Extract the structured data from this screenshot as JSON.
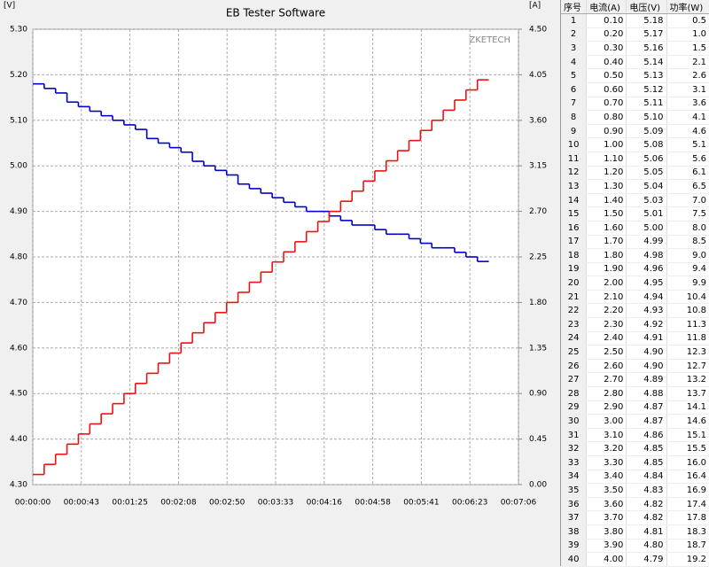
{
  "chart_data": {
    "type": "step-line",
    "title": "EB Tester Software",
    "y_label": "[V]",
    "y2_label": "[A]",
    "watermark": "ZKETECH",
    "x": [
      0,
      10,
      20,
      30,
      40,
      50,
      60,
      70,
      80,
      90,
      100,
      110,
      120,
      130,
      140,
      150,
      160,
      170,
      180,
      190,
      200,
      210,
      220,
      230,
      240,
      250,
      260,
      270,
      280,
      290,
      300,
      310,
      320,
      330,
      340,
      350,
      360,
      370,
      380,
      390
    ],
    "xlim": [
      0,
      426
    ],
    "xticks": [
      {
        "value": 0,
        "label": "00:00:00"
      },
      {
        "value": 42.6,
        "label": "00:00:43"
      },
      {
        "value": 85.2,
        "label": "00:01:25"
      },
      {
        "value": 127.8,
        "label": "00:02:08"
      },
      {
        "value": 170.4,
        "label": "00:02:50"
      },
      {
        "value": 213,
        "label": "00:03:33"
      },
      {
        "value": 255.6,
        "label": "00:04:16"
      },
      {
        "value": 298.2,
        "label": "00:04:58"
      },
      {
        "value": 340.8,
        "label": "00:05:41"
      },
      {
        "value": 383.4,
        "label": "00:06:23"
      },
      {
        "value": 426,
        "label": "00:07:06"
      }
    ],
    "ylim": [
      4.3,
      5.3
    ],
    "yticks": [
      {
        "value": 4.3,
        "label": "4.30"
      },
      {
        "value": 4.4,
        "label": "4.40"
      },
      {
        "value": 4.5,
        "label": "4.50"
      },
      {
        "value": 4.6,
        "label": "4.60"
      },
      {
        "value": 4.7,
        "label": "4.70"
      },
      {
        "value": 4.8,
        "label": "4.80"
      },
      {
        "value": 4.9,
        "label": "4.90"
      },
      {
        "value": 5.0,
        "label": "5.00"
      },
      {
        "value": 5.1,
        "label": "5.10"
      },
      {
        "value": 5.2,
        "label": "5.20"
      },
      {
        "value": 5.3,
        "label": "5.30"
      }
    ],
    "y2lim": [
      0,
      4.5
    ],
    "y2ticks": [
      {
        "value": 0,
        "label": "0.00"
      },
      {
        "value": 0.45,
        "label": "0.45"
      },
      {
        "value": 0.9,
        "label": "0.90"
      },
      {
        "value": 1.35,
        "label": "1.35"
      },
      {
        "value": 1.8,
        "label": "1.80"
      },
      {
        "value": 2.25,
        "label": "2.25"
      },
      {
        "value": 2.7,
        "label": "2.70"
      },
      {
        "value": 3.15,
        "label": "3.15"
      },
      {
        "value": 3.6,
        "label": "3.60"
      },
      {
        "value": 4.05,
        "label": "4.05"
      },
      {
        "value": 4.5,
        "label": "4.50"
      }
    ],
    "grid": true,
    "series": [
      {
        "color": "#0000cc",
        "values": [
          5.18,
          5.17,
          5.16,
          5.14,
          5.13,
          5.12,
          5.11,
          5.1,
          5.09,
          5.08,
          5.06,
          5.05,
          5.04,
          5.03,
          5.01,
          5.0,
          4.99,
          4.98,
          4.96,
          4.95,
          4.94,
          4.93,
          4.92,
          4.91,
          4.9,
          4.9,
          4.89,
          4.88,
          4.87,
          4.87,
          4.86,
          4.85,
          4.85,
          4.84,
          4.83,
          4.82,
          4.82,
          4.81,
          4.8,
          4.79
        ]
      },
      {
        "color": "#ee1111",
        "axis": "y2",
        "values": [
          0.1,
          0.2,
          0.3,
          0.4,
          0.5,
          0.6,
          0.7,
          0.8,
          0.9,
          1.0,
          1.1,
          1.2,
          1.3,
          1.4,
          1.5,
          1.6,
          1.7,
          1.8,
          1.9,
          2.0,
          2.1,
          2.2,
          2.3,
          2.4,
          2.5,
          2.6,
          2.7,
          2.8,
          2.9,
          3.0,
          3.1,
          3.2,
          3.3,
          3.4,
          3.5,
          3.6,
          3.7,
          3.8,
          3.9,
          4.0
        ]
      }
    ]
  },
  "table": {
    "headers": [
      "序号",
      "电流(A)",
      "电压(V)",
      "功率(W)"
    ],
    "rows": [
      [
        "1",
        "0.10",
        "5.18",
        "0.5"
      ],
      [
        "2",
        "0.20",
        "5.17",
        "1.0"
      ],
      [
        "3",
        "0.30",
        "5.16",
        "1.5"
      ],
      [
        "4",
        "0.40",
        "5.14",
        "2.1"
      ],
      [
        "5",
        "0.50",
        "5.13",
        "2.6"
      ],
      [
        "6",
        "0.60",
        "5.12",
        "3.1"
      ],
      [
        "7",
        "0.70",
        "5.11",
        "3.6"
      ],
      [
        "8",
        "0.80",
        "5.10",
        "4.1"
      ],
      [
        "9",
        "0.90",
        "5.09",
        "4.6"
      ],
      [
        "10",
        "1.00",
        "5.08",
        "5.1"
      ],
      [
        "11",
        "1.10",
        "5.06",
        "5.6"
      ],
      [
        "12",
        "1.20",
        "5.05",
        "6.1"
      ],
      [
        "13",
        "1.30",
        "5.04",
        "6.5"
      ],
      [
        "14",
        "1.40",
        "5.03",
        "7.0"
      ],
      [
        "15",
        "1.50",
        "5.01",
        "7.5"
      ],
      [
        "16",
        "1.60",
        "5.00",
        "8.0"
      ],
      [
        "17",
        "1.70",
        "4.99",
        "8.5"
      ],
      [
        "18",
        "1.80",
        "4.98",
        "9.0"
      ],
      [
        "19",
        "1.90",
        "4.96",
        "9.4"
      ],
      [
        "20",
        "2.00",
        "4.95",
        "9.9"
      ],
      [
        "21",
        "2.10",
        "4.94",
        "10.4"
      ],
      [
        "22",
        "2.20",
        "4.93",
        "10.8"
      ],
      [
        "23",
        "2.30",
        "4.92",
        "11.3"
      ],
      [
        "24",
        "2.40",
        "4.91",
        "11.8"
      ],
      [
        "25",
        "2.50",
        "4.90",
        "12.3"
      ],
      [
        "26",
        "2.60",
        "4.90",
        "12.7"
      ],
      [
        "27",
        "2.70",
        "4.89",
        "13.2"
      ],
      [
        "28",
        "2.80",
        "4.88",
        "13.7"
      ],
      [
        "29",
        "2.90",
        "4.87",
        "14.1"
      ],
      [
        "30",
        "3.00",
        "4.87",
        "14.6"
      ],
      [
        "31",
        "3.10",
        "4.86",
        "15.1"
      ],
      [
        "32",
        "3.20",
        "4.85",
        "15.5"
      ],
      [
        "33",
        "3.30",
        "4.85",
        "16.0"
      ],
      [
        "34",
        "3.40",
        "4.84",
        "16.4"
      ],
      [
        "35",
        "3.50",
        "4.83",
        "16.9"
      ],
      [
        "36",
        "3.60",
        "4.82",
        "17.4"
      ],
      [
        "37",
        "3.70",
        "4.82",
        "17.8"
      ],
      [
        "38",
        "3.80",
        "4.81",
        "18.3"
      ],
      [
        "39",
        "3.90",
        "4.80",
        "18.7"
      ],
      [
        "40",
        "4.00",
        "4.79",
        "19.2"
      ]
    ]
  }
}
